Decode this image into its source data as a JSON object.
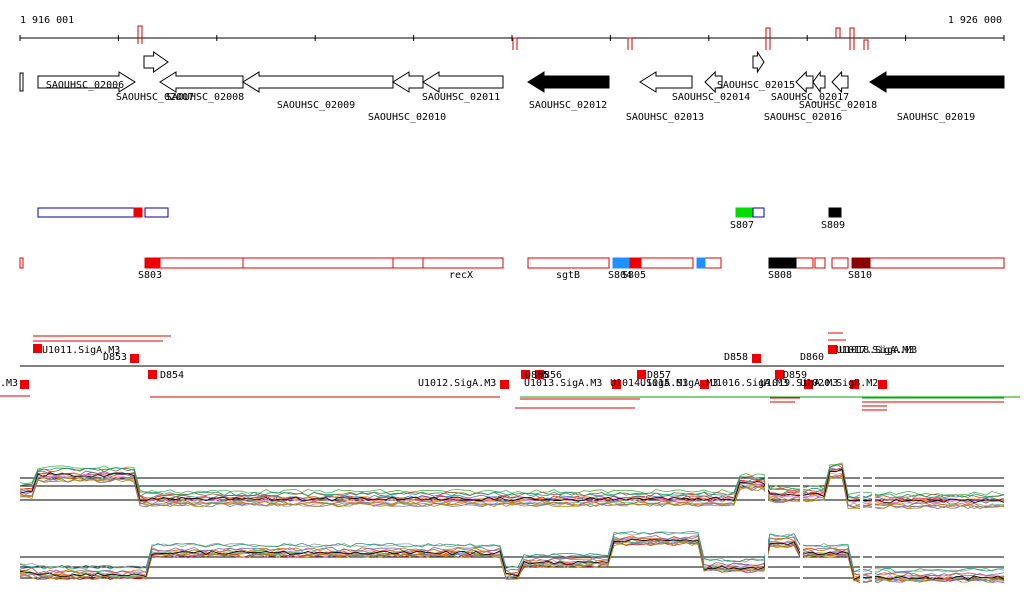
{
  "ruler": {
    "start_label": "1 916 001",
    "end_label": "1 926 000"
  },
  "genes": [
    "SAOUHSC_02006",
    "SAOUHSC_02007",
    "SAOUHSC_02008",
    "SAOUHSC_02009",
    "SAOUHSC_02010",
    "SAOUHSC_02011",
    "SAOUHSC_02012",
    "SAOUHSC_02013",
    "SAOUHSC_02014",
    "SAOUHSC_02015",
    "SAOUHSC_02016",
    "SAOUHSC_02017",
    "SAOUHSC_02018",
    "SAOUHSC_02019"
  ],
  "segments": [
    "S807",
    "S809",
    "S803",
    "recX",
    "sgtB",
    "S804",
    "S805",
    "S808",
    "S810"
  ],
  "promoters": [
    ".M3",
    "U1011.SigA.M3",
    "D853",
    "D854",
    "U1012.SigA.M3",
    "D855",
    "D856",
    "U1013.SigA.M3",
    "U1014.SigA.M3",
    "D857",
    "U1015.SigA.M3",
    "U1016.SigA.M3",
    "D858",
    "D859",
    "U1019.SigA.M3",
    "D860",
    "U1017.SigA.M3",
    "U1018.SigA.M3",
    "U1020.SigB.M2"
  ]
}
